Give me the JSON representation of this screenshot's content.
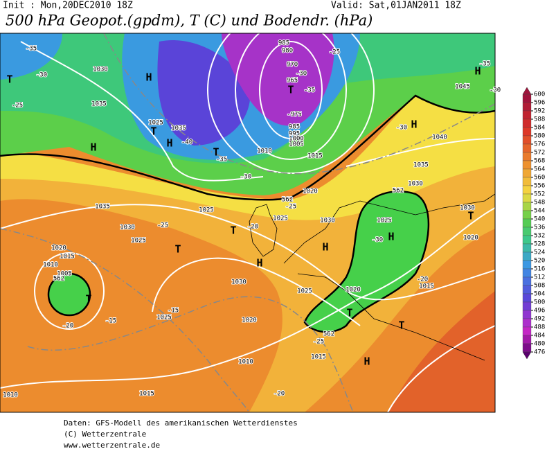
{
  "header": {
    "init": "Init : Mon,20DEC2010 18Z",
    "valid": "Valid: Sat,01JAN2011 18Z",
    "title": "500 hPa Geopot.(gpdm), T (C) und Bodendr. (hPa)"
  },
  "scale": {
    "ticks": [
      600,
      596,
      592,
      588,
      584,
      580,
      576,
      572,
      568,
      564,
      560,
      556,
      552,
      548,
      544,
      540,
      536,
      532,
      528,
      524,
      520,
      516,
      512,
      508,
      504,
      500,
      496,
      492,
      488,
      484,
      480,
      476
    ]
  },
  "map": {
    "labels": [
      "-35",
      "-30",
      "T",
      "1030",
      "H",
      "-25",
      "1035",
      "1025",
      "T",
      "1035",
      "H",
      "H",
      "-40",
      "T",
      "-35",
      "-30",
      "985",
      "980",
      "970",
      "965",
      "T",
      "-30",
      "-35",
      "-975",
      "985",
      "995",
      "1000",
      "1005",
      "1010",
      "1015",
      "-25",
      "H",
      "-35",
      "1045",
      "-30",
      "-30",
      "H",
      "1040",
      "1035",
      "1030",
      "1020",
      "562",
      "-25",
      "1025",
      "1035",
      "1030",
      "-25",
      "1025",
      "T",
      "-20",
      "1025",
      "1030",
      "T",
      "H",
      "H",
      "562",
      "1025",
      "H",
      "-30",
      "1020",
      "1030",
      "T",
      "1020",
      "1015",
      "1010",
      "1005",
      "562",
      "T",
      "-20",
      "-15",
      "-15",
      "1025",
      "1030",
      "1025",
      "1020",
      "1015",
      "-20",
      "1020",
      "T",
      "T",
      "562",
      "-25",
      "1015",
      "H",
      "1010",
      "-20",
      "1015",
      "1010"
    ]
  },
  "footer": {
    "lines": [
      "Daten: GFS-Modell des amerikanischen Wetterdienstes",
      "(C) Wetterzentrale",
      "www.wetterzentrale.de"
    ]
  }
}
